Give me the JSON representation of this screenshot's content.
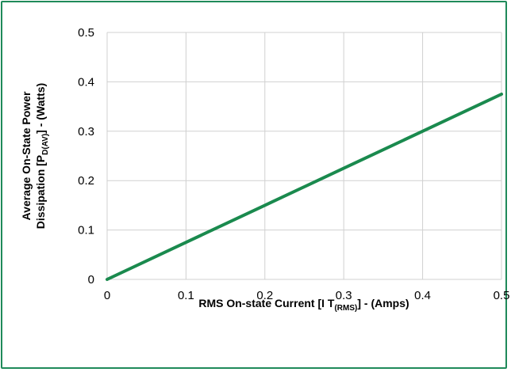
{
  "chart_data": {
    "type": "line",
    "title": "",
    "xlabel": {
      "main": "RMS On-state Current [I T",
      "sub": "(RMS)",
      "tail": "] - (Amps)"
    },
    "ylabel": {
      "line1": "Average On-State Power",
      "line2_main": "Dissipation [P",
      "line2_sub": "D(AV)",
      "line2_tail": "] - (Watts)"
    },
    "xlim": [
      0,
      0.5
    ],
    "ylim": [
      0,
      0.5
    ],
    "xticks": [
      "0",
      "0.1",
      "0.2",
      "0.3",
      "0.4",
      "0.5"
    ],
    "yticks": [
      "0",
      "0.1",
      "0.2",
      "0.3",
      "0.4",
      "0.5"
    ],
    "grid": true,
    "legend": "none",
    "series": [
      {
        "color": "#1a8a4e",
        "x": [
          0,
          0.1,
          0.2,
          0.3,
          0.4,
          0.5
        ],
        "y": [
          0,
          0.075,
          0.15,
          0.225,
          0.3,
          0.375
        ]
      }
    ]
  },
  "colors": {
    "border": "#1f8a5a",
    "grid": "#d0d0d0",
    "line": "#1a8a4e"
  }
}
